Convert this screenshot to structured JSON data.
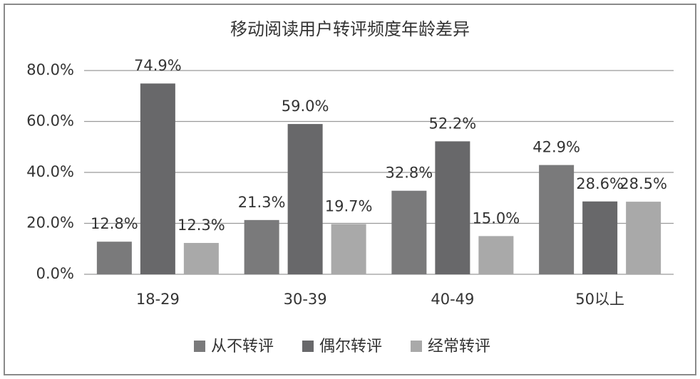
{
  "chart_data": {
    "type": "bar",
    "title": "移动阅读用户转评频度年龄差异",
    "categories": [
      "18-29",
      "30-39",
      "40-49",
      "50以上"
    ],
    "series": [
      {
        "name": "从不转评",
        "color": "#7a7a7b",
        "values": [
          12.8,
          21.3,
          32.8,
          42.9
        ],
        "value_labels": [
          "12.8%",
          "21.3%",
          "32.8%",
          "42.9%"
        ]
      },
      {
        "name": "偶尔转评",
        "color": "#68686a",
        "values": [
          74.9,
          59.0,
          52.2,
          28.6
        ],
        "value_labels": [
          "74.9%",
          "59.0%",
          "52.2%",
          "28.6%"
        ]
      },
      {
        "name": "经常转评",
        "color": "#a9a9a9",
        "values": [
          12.3,
          19.7,
          15.0,
          28.5
        ],
        "value_labels": [
          "12.3%",
          "19.7%",
          "15.0%",
          "28.5%"
        ]
      }
    ],
    "ylim": [
      0,
      80
    ],
    "yticks": [
      {
        "value": 0,
        "label": "0.0%"
      },
      {
        "value": 20,
        "label": "20.0%"
      },
      {
        "value": 40,
        "label": "40.0%"
      },
      {
        "value": 60,
        "label": "60.0%"
      },
      {
        "value": 80,
        "label": "80.0%"
      }
    ],
    "grid": true,
    "legend": "bottom"
  }
}
